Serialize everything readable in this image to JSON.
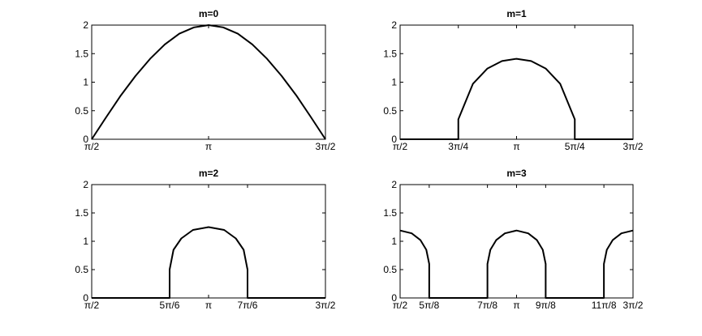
{
  "chart_data": [
    {
      "type": "line",
      "title": "m=0",
      "color": "#000000",
      "x": [
        1.5708,
        1.7671,
        1.9635,
        2.1598,
        2.3562,
        2.5525,
        2.7489,
        2.9452,
        3.1416,
        3.3379,
        3.5343,
        3.7306,
        3.927,
        4.1233,
        4.3197,
        4.516,
        4.7124
      ],
      "values": [
        0,
        0.39,
        0.77,
        1.11,
        1.41,
        1.66,
        1.85,
        1.96,
        2,
        1.96,
        1.85,
        1.66,
        1.41,
        1.11,
        0.77,
        0.39,
        0
      ],
      "xlim": [
        1.5708,
        4.7124
      ],
      "ylim": [
        0,
        2
      ],
      "xticks": [
        {
          "value": 1.5708,
          "label": "π/2"
        },
        {
          "value": 3.1416,
          "label": "π"
        },
        {
          "value": 4.7124,
          "label": "3π/2"
        }
      ],
      "yticks": [
        0,
        0.5,
        1,
        1.5,
        2
      ]
    },
    {
      "type": "line",
      "title": "m=1",
      "color": "#000000",
      "x": [
        1.5708,
        2.3562,
        2.3562,
        2.5525,
        2.7489,
        2.9452,
        3.1416,
        3.3379,
        3.5343,
        3.7306,
        3.927,
        3.927,
        4.7124
      ],
      "values": [
        0,
        0,
        0.35,
        0.97,
        1.24,
        1.37,
        1.41,
        1.37,
        1.24,
        0.97,
        0.35,
        0,
        0
      ],
      "xlim": [
        1.5708,
        4.7124
      ],
      "ylim": [
        0,
        2
      ],
      "xticks": [
        {
          "value": 1.5708,
          "label": "π/2"
        },
        {
          "value": 2.3562,
          "label": "3π/4"
        },
        {
          "value": 3.1416,
          "label": "π"
        },
        {
          "value": 3.927,
          "label": "5π/4"
        },
        {
          "value": 4.7124,
          "label": "3π/2"
        }
      ],
      "yticks": [
        0,
        0.5,
        1,
        1.5,
        2
      ]
    },
    {
      "type": "line",
      "title": "m=2",
      "color": "#000000",
      "x": [
        1.5708,
        2.618,
        2.618,
        2.6704,
        2.7751,
        2.9322,
        3.1416,
        3.351,
        3.5081,
        3.6128,
        3.6652,
        3.6652,
        4.7124
      ],
      "values": [
        0,
        0,
        0.5,
        0.85,
        1.05,
        1.2,
        1.25,
        1.2,
        1.05,
        0.85,
        0.5,
        0,
        0
      ],
      "xlim": [
        1.5708,
        4.7124
      ],
      "ylim": [
        0,
        2
      ],
      "xticks": [
        {
          "value": 1.5708,
          "label": "π/2"
        },
        {
          "value": 2.618,
          "label": "5π/6"
        },
        {
          "value": 3.1416,
          "label": "π"
        },
        {
          "value": 3.6652,
          "label": "7π/6"
        },
        {
          "value": 4.7124,
          "label": "3π/2"
        }
      ],
      "yticks": [
        0,
        0.5,
        1,
        1.5,
        2
      ]
    },
    {
      "type": "line",
      "title": "m=3",
      "color": "#000000",
      "x": [
        1.5708,
        1.7279,
        1.8457,
        1.9242,
        1.9635,
        1.9635,
        2.7489,
        2.7489,
        2.7882,
        2.8667,
        2.9845,
        3.1416,
        3.2987,
        3.4165,
        3.495,
        3.5343,
        3.5343,
        4.3197,
        4.3197,
        4.359,
        4.4375,
        4.5553,
        4.7124
      ],
      "values": [
        1.19,
        1.14,
        1.02,
        0.85,
        0.6,
        0,
        0,
        0.6,
        0.85,
        1.02,
        1.14,
        1.19,
        1.14,
        1.02,
        0.85,
        0.6,
        0,
        0,
        0.6,
        0.85,
        1.02,
        1.14,
        1.19
      ],
      "xlim": [
        1.5708,
        4.7124
      ],
      "ylim": [
        0,
        2
      ],
      "xticks": [
        {
          "value": 1.5708,
          "label": "π/2"
        },
        {
          "value": 1.9635,
          "label": "5π/8"
        },
        {
          "value": 2.7489,
          "label": "7π/8"
        },
        {
          "value": 3.1416,
          "label": "π"
        },
        {
          "value": 3.5343,
          "label": "9π/8"
        },
        {
          "value": 4.3197,
          "label": "11π/8"
        },
        {
          "value": 4.7124,
          "label": "3π/2"
        }
      ],
      "yticks": [
        0,
        0.5,
        1,
        1.5,
        2
      ]
    }
  ]
}
